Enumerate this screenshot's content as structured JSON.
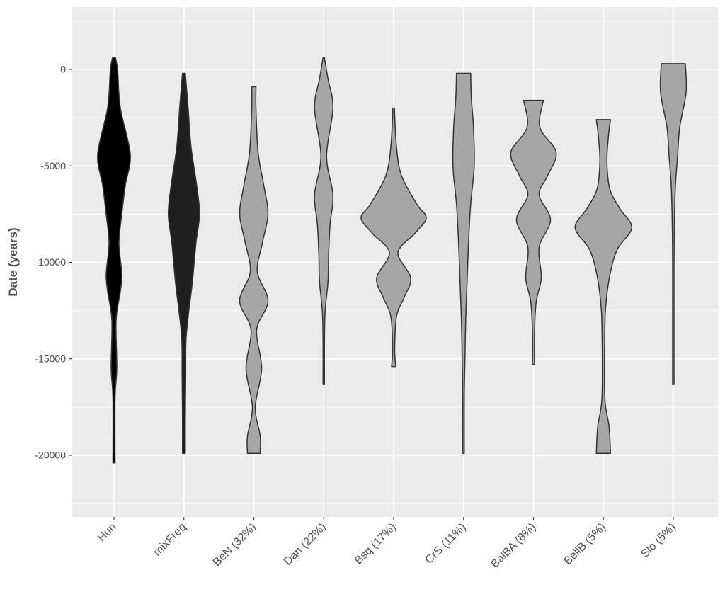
{
  "chart_data": {
    "type": "violin",
    "title": "",
    "xlabel": "",
    "ylabel": "Date (years)",
    "ylim": [
      -22500,
      2600
    ],
    "y_ticks": [
      0,
      -5000,
      -10000,
      -15000,
      -20000
    ],
    "y_tick_labels": [
      "0",
      "-5000",
      "-10000",
      "-15000",
      "-20000"
    ],
    "grid": true,
    "legend": "none",
    "categories": [
      "Hun",
      "mixFreq",
      "BeN (32%)",
      "Dan (22%)",
      "Bsq (17%)",
      "CrS (11%)",
      "BalBA (8%)",
      "BellB (5%)",
      "Slo (5%)"
    ],
    "fill_colors": [
      "#000000",
      "#1f1f1f",
      "#a6a6a6",
      "#a6a6a6",
      "#a6a6a6",
      "#a6a6a6",
      "#a6a6a6",
      "#a6a6a6",
      "#a6a6a6"
    ],
    "outline_color": "#333333",
    "panel_background": "#ebebeb",
    "violins": [
      {
        "name": "Hun",
        "profile": [
          [
            600,
            2
          ],
          [
            0,
            5
          ],
          [
            -2000,
            9
          ],
          [
            -4400,
            23
          ],
          [
            -6000,
            16
          ],
          [
            -7500,
            11
          ],
          [
            -9000,
            7
          ],
          [
            -10600,
            11
          ],
          [
            -11500,
            9
          ],
          [
            -13000,
            3
          ],
          [
            -15500,
            4
          ],
          [
            -17000,
            1.5
          ],
          [
            -20400,
            1.5
          ]
        ]
      },
      {
        "name": "mixFreq",
        "profile": [
          [
            -200,
            2
          ],
          [
            -2000,
            6
          ],
          [
            -4000,
            10
          ],
          [
            -6000,
            18
          ],
          [
            -7500,
            22
          ],
          [
            -9000,
            17
          ],
          [
            -11000,
            12
          ],
          [
            -12500,
            7
          ],
          [
            -14000,
            3
          ],
          [
            -16000,
            2.5
          ],
          [
            -18000,
            2
          ],
          [
            -19900,
            2
          ]
        ]
      },
      {
        "name": "BeN (32%)",
        "profile": [
          [
            -900,
            3
          ],
          [
            -2000,
            3
          ],
          [
            -4300,
            6
          ],
          [
            -6000,
            14
          ],
          [
            -7500,
            20
          ],
          [
            -9000,
            12
          ],
          [
            -10500,
            5
          ],
          [
            -12000,
            20
          ],
          [
            -13500,
            4
          ],
          [
            -15500,
            11
          ],
          [
            -17500,
            2
          ],
          [
            -19000,
            9
          ],
          [
            -19900,
            9
          ]
        ]
      },
      {
        "name": "Dan (22%)",
        "profile": [
          [
            600,
            1
          ],
          [
            -500,
            6
          ],
          [
            -2000,
            13
          ],
          [
            -4500,
            4
          ],
          [
            -6500,
            13
          ],
          [
            -8000,
            9
          ],
          [
            -9500,
            7
          ],
          [
            -11000,
            6
          ],
          [
            -12500,
            2
          ],
          [
            -14000,
            1
          ],
          [
            -16300,
            1
          ]
        ]
      },
      {
        "name": "Bsq (17%)",
        "profile": [
          [
            -2000,
            1
          ],
          [
            -4000,
            4
          ],
          [
            -5500,
            11
          ],
          [
            -7000,
            33
          ],
          [
            -7700,
            46
          ],
          [
            -8500,
            30
          ],
          [
            -9500,
            6
          ],
          [
            -10800,
            24
          ],
          [
            -11800,
            15
          ],
          [
            -12800,
            4
          ],
          [
            -14500,
            1.5
          ],
          [
            -15400,
            3
          ]
        ]
      },
      {
        "name": "CrS (11%)",
        "profile": [
          [
            -200,
            10
          ],
          [
            -1500,
            11
          ],
          [
            -3000,
            14
          ],
          [
            -5000,
            15
          ],
          [
            -7000,
            10
          ],
          [
            -9000,
            7
          ],
          [
            -11000,
            5
          ],
          [
            -13000,
            3
          ],
          [
            -15000,
            2
          ],
          [
            -17000,
            1
          ],
          [
            -19900,
            1
          ]
        ]
      },
      {
        "name": "BalBA (8%)",
        "profile": [
          [
            -1600,
            14
          ],
          [
            -3000,
            9
          ],
          [
            -4300,
            32
          ],
          [
            -5500,
            20
          ],
          [
            -6500,
            8
          ],
          [
            -7800,
            24
          ],
          [
            -9200,
            8
          ],
          [
            -10800,
            11
          ],
          [
            -12000,
            4
          ],
          [
            -13500,
            1.5
          ],
          [
            -15300,
            1.5
          ]
        ]
      },
      {
        "name": "BellB (5%)",
        "profile": [
          [
            -2600,
            10
          ],
          [
            -3500,
            7
          ],
          [
            -4800,
            5
          ],
          [
            -6200,
            9
          ],
          [
            -7200,
            23
          ],
          [
            -8200,
            40
          ],
          [
            -9300,
            20
          ],
          [
            -10500,
            10
          ],
          [
            -12000,
            4
          ],
          [
            -13500,
            2
          ],
          [
            -17000,
            2
          ],
          [
            -18500,
            8
          ],
          [
            -19900,
            10
          ]
        ]
      },
      {
        "name": "Slo (5%)",
        "profile": [
          [
            300,
            17
          ],
          [
            -1200,
            18
          ],
          [
            -3000,
            9
          ],
          [
            -4500,
            6
          ],
          [
            -6000,
            3
          ],
          [
            -8000,
            1.5
          ],
          [
            -10000,
            1
          ],
          [
            -13000,
            1
          ],
          [
            -16300,
            1
          ]
        ]
      }
    ]
  }
}
